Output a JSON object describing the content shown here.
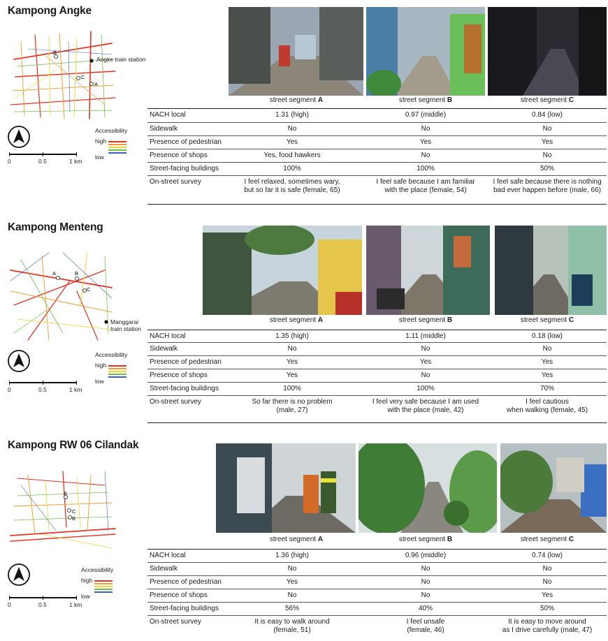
{
  "segment_prefix": "street segment",
  "row_headers": [
    "NACH local",
    "Sidewalk",
    "Presence of pedestrian",
    "Presence of shops",
    "Street-facing buildings",
    "On-street survey"
  ],
  "legend": {
    "title": "Accessibility",
    "high": "high",
    "low": "low",
    "colors": [
      "#e63323",
      "#f29a2e",
      "#f2d335",
      "#6dbf45",
      "#3a5fc4"
    ]
  },
  "scale": {
    "t0": "0",
    "t1": "0.5",
    "t2": "1 km"
  },
  "sections": [
    {
      "title": "Kampong Angke",
      "station": "Angke train station",
      "segments": [
        "A",
        "B",
        "C"
      ],
      "rows": [
        [
          "1.31 (high)",
          "0.97 (middle)",
          "0.84 (low)"
        ],
        [
          "No",
          "No",
          "No"
        ],
        [
          "Yes",
          "Yes",
          "Yes"
        ],
        [
          "Yes, food hawkers",
          "No",
          "No"
        ],
        [
          "100%",
          "100%",
          "50%"
        ],
        [
          [
            "I feel relaxed, sometimes wary,",
            "but so far it is safe (female, 65)"
          ],
          [
            "I feel safe because I am familiar",
            "with the place (female, 54)"
          ],
          [
            "I feel safe because there is nothing",
            "bad ever happen before (male, 66)"
          ]
        ]
      ]
    },
    {
      "title": "Kampong Menteng",
      "station": "Manggarai train station",
      "station_lines": [
        "Manggarai",
        "train station"
      ],
      "segments": [
        "A",
        "B",
        "C"
      ],
      "rows": [
        [
          "1.35 (high)",
          "1.11 (middle)",
          "0.18 (low)"
        ],
        [
          "No",
          "No",
          "No"
        ],
        [
          "Yes",
          "Yes",
          "Yes"
        ],
        [
          "Yes",
          "No",
          "Yes"
        ],
        [
          "100%",
          "100%",
          "70%"
        ],
        [
          [
            "So far there is no problem",
            "(male, 27)"
          ],
          [
            "I feel very safe because I am used",
            "with the place (male, 42)"
          ],
          [
            "I feel cautious",
            "when walking (female, 45)"
          ]
        ]
      ]
    },
    {
      "title": "Kampong RW 06 Cilandak",
      "segments": [
        "A",
        "B",
        "C"
      ],
      "rows": [
        [
          "1.36 (high)",
          "0.96 (middle)",
          "0.74 (low)"
        ],
        [
          "No",
          "No",
          "No"
        ],
        [
          "Yes",
          "No",
          "No"
        ],
        [
          "No",
          "No",
          "Yes"
        ],
        [
          "56%",
          "40%",
          "50%"
        ],
        [
          [
            "It is easy to walk around",
            "(female, 51)"
          ],
          [
            "I feel unsafe",
            "(female, 46)"
          ],
          [
            "It is easy to move around",
            "as I drive carefully (male, 47)"
          ]
        ]
      ]
    }
  ]
}
